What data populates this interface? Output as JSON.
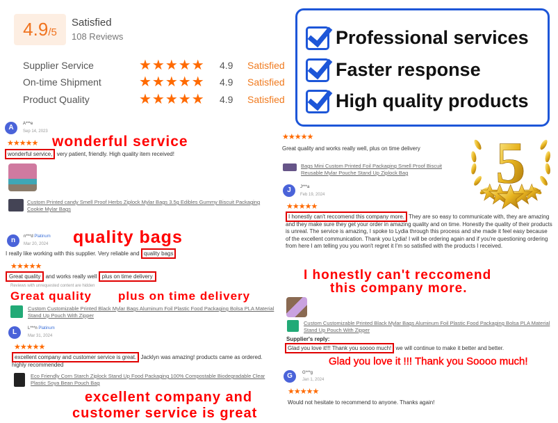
{
  "summary": {
    "score": "4.9",
    "out_of": "/5",
    "label": "Satisfied",
    "reviews": "108 Reviews",
    "rows": [
      {
        "label": "Supplier Service",
        "rating": "4.9",
        "status": "Satisfied"
      },
      {
        "label": "On-time Shipment",
        "rating": "4.9",
        "status": "Satisfied"
      },
      {
        "label": "Product Quality",
        "rating": "4.9",
        "status": "Satisfied"
      }
    ]
  },
  "stars": "★★★★★",
  "features": [
    "Professional services",
    "Faster response",
    "High quality products"
  ],
  "emblem": {
    "number": "5"
  },
  "reviews": [
    {
      "initial": "A",
      "name": "A***e",
      "date": "Sep 14, 2023",
      "highlight": "wonderful service,",
      "text": "very patient, friendly. High quality item received!",
      "callout": "wonderful service",
      "product": "Custom Printed candy Smell Proof Herbs Ziplock Mylar Bags 3.5g Edibles Gummy Biscuit Packaging Cookie Mylar Bags"
    },
    {
      "initial": "n",
      "name": "n***d",
      "badge": "Platinum",
      "date": "Mar 20, 2024",
      "text": "I really like working with this supplier. Very reliable and",
      "highlight": "quality bags",
      "callout": "quality bags",
      "text2_h1": "Great quality",
      "text2_mid": "and works really well",
      "text2_h2": "plus on time delivery",
      "hidden": "Reviews with unrequested content are hidden",
      "callout2": "Great quality",
      "callout3": "plus on time delivery",
      "product": "Custom Customizable Printed Black Mylar Bags Aluminum Foil Plastic Food Packaging Bolsa PLA Material Stand Up Pouch With Zipper"
    },
    {
      "initial": "L",
      "name": "L***n",
      "badge": "Platinum",
      "date": "Mar 31, 2024",
      "highlight": "excellent company and customer service is great.",
      "text": "Jacklyn was amazing! products came as ordered. highly recommended",
      "callout1": "excellent company and",
      "callout2": "customer service is great",
      "product": "Eco Friendly Corn Starch Ziplock Stand Up Food Packaging 100% Compostable Biodegradable Clear Plastic Soya Bean Pouch Bag"
    },
    {
      "text": "Great quality and works really well, plus on time delivery",
      "product": "Bags Mini Custom Printed Foil Packaging Smell Proof Biscuit Reusable Mylar Pouche Stand Up Ziplock Bag"
    },
    {
      "initial": "J",
      "name": "J***a",
      "date": "Feb 19, 2024",
      "highlight": "I honestly can't reccomend this company more.",
      "text": "They are so easy to communicate with, they are amazing and they make sure they get your order in amazing quality and on time. Honestly the quality of their products is unreal. The service is amazing, I spoke to Lydia through this process and she made it feel easy because of the excellent communication. Thank you Lydia! I will be ordering again and if you're questioning ordering from here I am telling you you won't regret it I'm so satisfied with the products I received.",
      "callout1": "I honestly can't reccomend",
      "callout2": "this company more.",
      "product": "Custom Customizable Printed Black Mylar Bags Aluminum Foil Plastic Food Packaging Bolsa PLA Material Stand Up Pouch With Zipper",
      "reply_label": "Supplier's reply:",
      "reply_highlight": "Glad you love it!!! Thank you soooo much!",
      "reply_text": "we will continue to make it better and better.",
      "reply_callout": "Glad you love it !!! Thank you Soooo much!"
    },
    {
      "initial": "G",
      "name": "G***g",
      "date": "Jan 1, 2024",
      "text": "Would not hesitate to recommend to anyone. Thanks again!"
    }
  ],
  "colors": {
    "accent": "#f07a1e",
    "callout": "#ff0000",
    "frame": "#1d56d8",
    "gold": "#e8b521"
  }
}
